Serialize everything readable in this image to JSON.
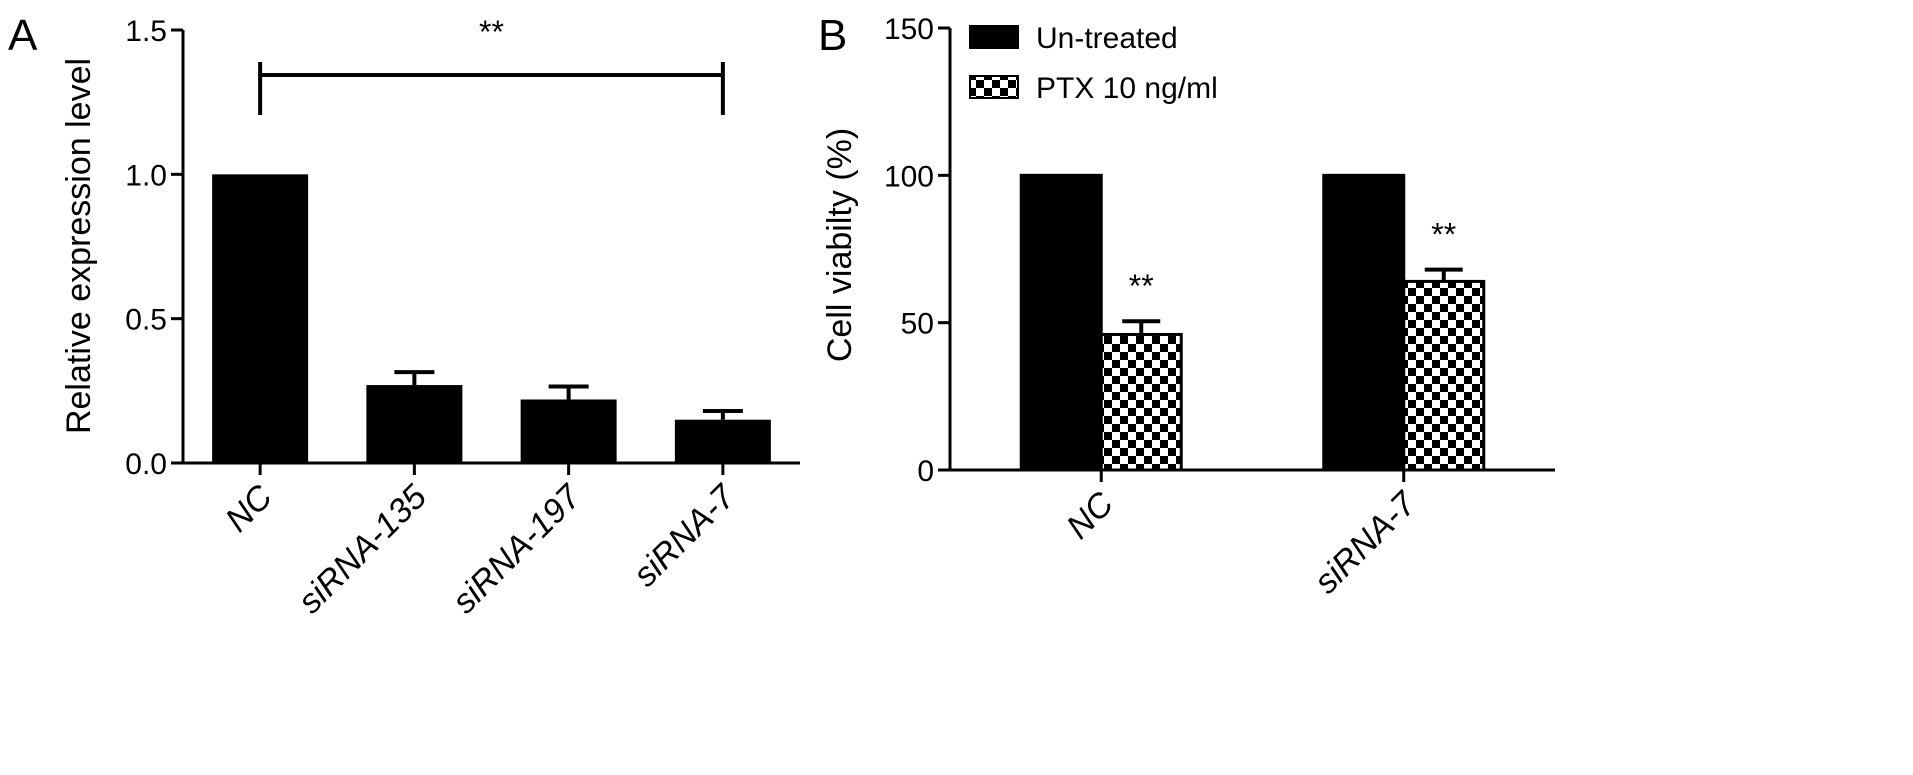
{
  "chart_data": [
    {
      "type": "bar",
      "panel_label": "A",
      "ylabel": "Relative expression level",
      "ylim": [
        0,
        1.5
      ],
      "yticks": [
        "0.0",
        "0.5",
        "1.0",
        "1.5"
      ],
      "categories": [
        "NC",
        "siRNA-135",
        "siRNA-197",
        "siRNA-7"
      ],
      "values": [
        1.0,
        0.27,
        0.22,
        0.15
      ],
      "errors": [
        0,
        0.045,
        0.045,
        0.03
      ],
      "color": "#000000",
      "annotations": [
        {
          "text": "**",
          "type": "bracket",
          "from": "NC",
          "to": "siRNA-7"
        }
      ]
    },
    {
      "type": "bar",
      "panel_label": "B",
      "ylabel": "Cell viabilty (%)",
      "ylim": [
        0,
        150
      ],
      "yticks": [
        "0",
        "50",
        "100",
        "150"
      ],
      "categories": [
        "NC",
        "siRNA-7"
      ],
      "series": [
        {
          "name": "Un-treated",
          "values": [
            100,
            100
          ],
          "errors": [
            0,
            0
          ],
          "fill": "solid"
        },
        {
          "name": "PTX 10 ng/ml",
          "values": [
            46,
            64
          ],
          "errors": [
            4.5,
            4
          ],
          "fill": "checker"
        }
      ],
      "annotations": [
        {
          "text": "**",
          "target": "NC"
        },
        {
          "text": "**",
          "target": "siRNA-7"
        }
      ],
      "legend": "top-left"
    }
  ]
}
